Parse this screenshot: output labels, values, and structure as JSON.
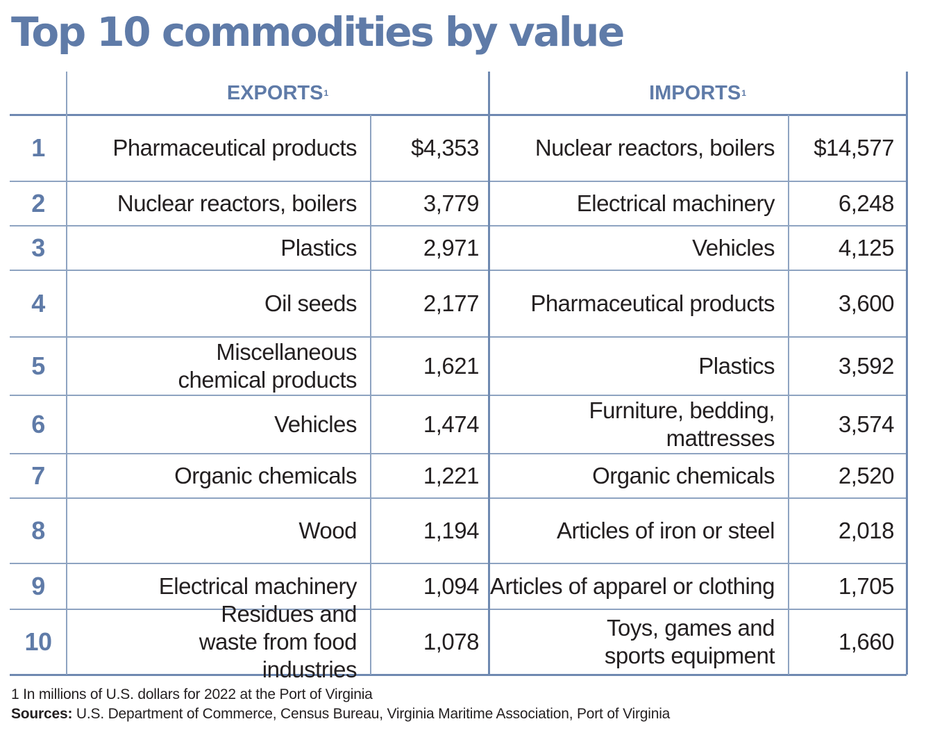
{
  "title": "Top 10 commodities by value",
  "colors": {
    "accent": "#5f7ba8",
    "rule": "#8ea3c1",
    "text": "#231f20"
  },
  "headers": {
    "exports": "EXPORTS",
    "imports": "IMPORTS",
    "footnote_mark": "1"
  },
  "chart_data": {
    "type": "table",
    "title": "Top 10 commodities by value",
    "columns": [
      "",
      "EXPORTS",
      "",
      "IMPORTS",
      ""
    ],
    "rows": [
      {
        "rank": "1",
        "export_name": "Pharmaceutical products",
        "export_value": "$4,353",
        "import_name": "Nuclear reactors, boilers",
        "import_value": "$14,577"
      },
      {
        "rank": "2",
        "export_name": "Nuclear reactors, boilers",
        "export_value": "3,779",
        "import_name": "Electrical machinery",
        "import_value": "6,248"
      },
      {
        "rank": "3",
        "export_name": "Plastics",
        "export_value": "2,971",
        "import_name": "Vehicles",
        "import_value": "4,125"
      },
      {
        "rank": "4",
        "export_name": "Oil seeds",
        "export_value": "2,177",
        "import_name": "Pharmaceutical products",
        "import_value": "3,600"
      },
      {
        "rank": "5",
        "export_name": "Miscellaneous chemical products",
        "export_value": "1,621",
        "import_name": "Plastics",
        "import_value": "3,592"
      },
      {
        "rank": "6",
        "export_name": "Vehicles",
        "export_value": "1,474",
        "import_name": "Furniture, bedding, mattresses",
        "import_value": "3,574"
      },
      {
        "rank": "7",
        "export_name": "Organic chemicals",
        "export_value": "1,221",
        "import_name": "Organic chemicals",
        "import_value": "2,520"
      },
      {
        "rank": "8",
        "export_name": "Wood",
        "export_value": "1,194",
        "import_name": "Articles of iron or steel",
        "import_value": "2,018"
      },
      {
        "rank": "9",
        "export_name": "Electrical machinery",
        "export_value": "1,094",
        "import_name": "Articles of apparel or clothing",
        "import_value": "1,705"
      },
      {
        "rank": "10",
        "export_name": "Residues and waste from food industries",
        "export_value": "1,078",
        "import_name": "Toys, games and sports equipment",
        "import_value": "1,660"
      }
    ]
  },
  "footnote": "1 In millions of U.S. dollars for 2022 at the Port of Virginia",
  "sources_label": "Sources:",
  "sources_text": "U.S. Department of Commerce, Census Bureau, Virginia Maritime Association, Port of Virginia"
}
